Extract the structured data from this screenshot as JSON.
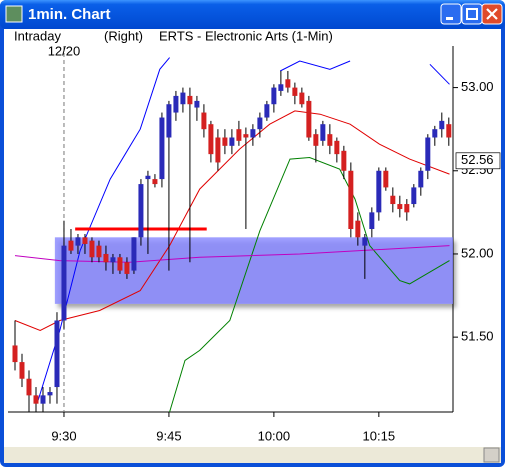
{
  "window": {
    "title": "1min. Chart"
  },
  "header": {
    "mode": "Intraday",
    "side": "(Right)",
    "symbol": "ERTS - Electronic Arts (1-Min)"
  },
  "chart_data": {
    "type": "candlestick",
    "up_color": "#2a2ab8",
    "down_color": "#d42020",
    "xlim": [
      -8,
      55.6
    ],
    "ylim": [
      51.05,
      53.25
    ],
    "xticks": [
      {
        "value": 0,
        "label": "9:30"
      },
      {
        "value": 15,
        "label": "9:45"
      },
      {
        "value": 30,
        "label": "10:00"
      },
      {
        "value": 45,
        "label": "10:15"
      }
    ],
    "yticks": [
      {
        "value": 53,
        "label": "53.00"
      },
      {
        "value": 52.5,
        "label": "52.50"
      },
      {
        "value": 52,
        "label": "52.00"
      },
      {
        "value": 51.5,
        "label": "51.50"
      }
    ],
    "separator": {
      "x": 0,
      "label": "12/20"
    },
    "zone": {
      "start": -1.3,
      "low": 51.7,
      "high": 52.1,
      "color": "#8080ff"
    },
    "hline": {
      "start": 1.6,
      "end": 20.4,
      "value": 52.15,
      "color": "#ff0000"
    },
    "last_price": 52.56,
    "x": [
      -7,
      -6,
      -5,
      -4,
      -3,
      -2,
      -1,
      0,
      1,
      2,
      3,
      4,
      5,
      6,
      7,
      8,
      9,
      10,
      11,
      12,
      13,
      14,
      15,
      16,
      17,
      18,
      19,
      20,
      21,
      22,
      23,
      24,
      25,
      26,
      27,
      28,
      29,
      30,
      31,
      32,
      33,
      34,
      35,
      36,
      37,
      38,
      39,
      40,
      41,
      42,
      43,
      44,
      45,
      46,
      47,
      48,
      49,
      50,
      51,
      52,
      53,
      54,
      55
    ],
    "open": [
      51.45,
      51.35,
      51.25,
      51.15,
      51.1,
      51.15,
      51.2,
      51.6,
      52.08,
      52.05,
      52.1,
      52.08,
      52.05,
      52.0,
      51.95,
      51.98,
      51.95,
      51.9,
      52.1,
      52.45,
      52.45,
      52.45,
      52.7,
      52.85,
      52.9,
      52.95,
      52.88,
      52.85,
      52.78,
      52.7,
      52.7,
      52.65,
      52.75,
      52.72,
      52.7,
      52.75,
      52.82,
      52.9,
      52.98,
      53.05,
      53.0,
      52.97,
      52.92,
      52.72,
      52.68,
      52.72,
      52.68,
      52.62,
      52.5,
      52.2,
      52.05,
      52.15,
      52.25,
      52.5,
      52.35,
      52.3,
      52.3,
      52.3,
      52.4,
      52.5,
      52.7,
      52.75,
      52.78
    ],
    "high": [
      51.6,
      51.4,
      51.3,
      51.2,
      51.2,
      51.2,
      51.65,
      52.2,
      52.15,
      52.12,
      52.12,
      52.1,
      52.08,
      52.05,
      52.0,
      52.0,
      51.98,
      52.1,
      52.45,
      52.5,
      52.48,
      52.85,
      52.92,
      52.98,
      53.0,
      53.0,
      52.95,
      52.9,
      52.8,
      52.75,
      52.75,
      52.75,
      52.8,
      52.76,
      52.78,
      52.85,
      52.92,
      53.02,
      53.1,
      53.1,
      53.03,
      53.0,
      52.95,
      52.75,
      52.8,
      52.78,
      52.7,
      52.65,
      52.55,
      52.25,
      52.12,
      52.28,
      52.52,
      52.52,
      52.4,
      52.35,
      52.33,
      52.42,
      52.52,
      52.72,
      52.77,
      52.85,
      52.82
    ],
    "low": [
      51.3,
      51.2,
      51.05,
      51.05,
      51.05,
      51.1,
      51.1,
      51.55,
      52.0,
      52.0,
      52.0,
      51.95,
      51.95,
      51.9,
      51.88,
      51.88,
      51.85,
      51.88,
      52.05,
      52.0,
      52.4,
      52.4,
      51.9,
      52.8,
      52.85,
      51.95,
      52.8,
      52.7,
      52.55,
      52.5,
      52.6,
      52.6,
      52.65,
      52.15,
      52.65,
      52.7,
      52.8,
      52.85,
      52.95,
      52.97,
      52.9,
      52.88,
      52.68,
      52.55,
      52.65,
      52.6,
      52.55,
      52.45,
      52.1,
      52.05,
      51.85,
      52.1,
      52.2,
      52.38,
      52.25,
      52.22,
      52.2,
      52.28,
      52.35,
      52.45,
      52.65,
      52.7,
      52.65
    ],
    "close": [
      51.35,
      51.25,
      51.15,
      51.1,
      51.15,
      51.17,
      51.6,
      52.05,
      52.02,
      52.1,
      52.06,
      51.98,
      51.98,
      51.95,
      51.98,
      51.9,
      51.88,
      52.1,
      52.42,
      52.47,
      52.42,
      52.82,
      52.9,
      52.95,
      52.97,
      52.9,
      52.92,
      52.75,
      52.6,
      52.55,
      52.65,
      52.7,
      52.68,
      52.7,
      52.75,
      52.82,
      52.9,
      53.0,
      53.02,
      53.0,
      52.95,
      52.9,
      52.7,
      52.65,
      52.78,
      52.65,
      52.6,
      52.5,
      52.15,
      52.1,
      52.1,
      52.25,
      52.5,
      52.4,
      52.3,
      52.27,
      52.25,
      52.4,
      52.5,
      52.7,
      52.75,
      52.8,
      52.7
    ],
    "lines": [
      {
        "color": "#0000ff",
        "x": [
          -3.7,
          -0.6,
          2.3,
          6.6,
          10.9,
          13.7,
          15.1,
          null,
          30.9,
          33.7,
          38,
          40.9,
          null,
          52.3,
          55.1
        ],
        "values": [
          51.12,
          51.54,
          52.02,
          52.45,
          52.75,
          53.11,
          53.18,
          null,
          53.1,
          53.16,
          53.11,
          53.16,
          null,
          53.14,
          53.02
        ]
      },
      {
        "color": "#008000",
        "x": [
          15.1,
          17.3,
          19.4,
          23.7,
          28,
          32.3,
          35.1,
          39.4,
          41.6,
          43.7,
          48,
          49.4,
          55.1
        ],
        "values": [
          51.05,
          51.36,
          51.42,
          51.6,
          52.14,
          52.57,
          52.58,
          52.51,
          52.33,
          52.05,
          51.84,
          51.82,
          51.96
        ]
      },
      {
        "color": "#e00000",
        "x": [
          -7,
          -3.4,
          -0.6,
          5.1,
          10.9,
          15.1,
          19.4,
          25.1,
          29.4,
          33,
          36.6,
          40.9,
          45.1,
          49.4,
          55.1
        ],
        "values": [
          51.6,
          51.54,
          51.6,
          51.66,
          51.78,
          52.05,
          52.39,
          52.63,
          52.78,
          52.86,
          52.84,
          52.78,
          52.66,
          52.57,
          52.48
        ]
      },
      {
        "color": "#c000c0",
        "x": [
          -7,
          -0.6,
          9.4,
          19.4,
          33.7,
          55.1
        ],
        "values": [
          51.99,
          51.96,
          51.95,
          51.98,
          52.0,
          52.05
        ]
      }
    ]
  }
}
